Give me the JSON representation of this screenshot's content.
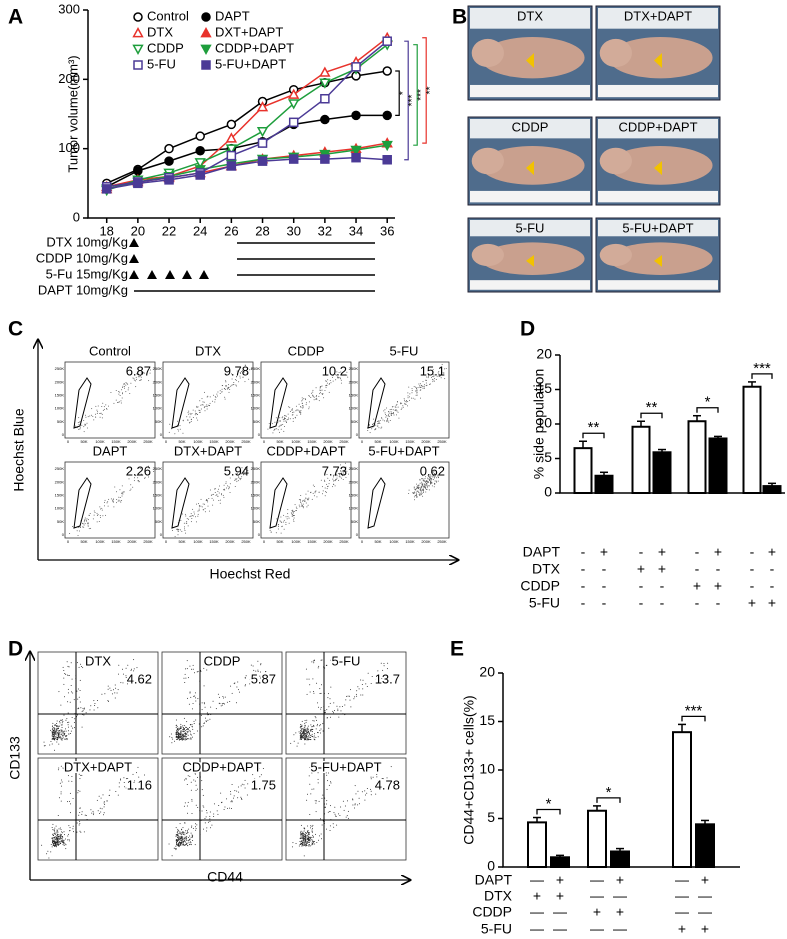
{
  "panel_labels": [
    "A",
    "B",
    "C",
    "D",
    "D",
    "E"
  ],
  "chart_data": [
    {
      "type": "line",
      "y_label": "Tumor volume(mm³)",
      "x": [
        18,
        20,
        22,
        24,
        26,
        28,
        30,
        32,
        34,
        36
      ],
      "xlim": [
        16.8,
        36.5
      ],
      "xticks": [
        18,
        20,
        22,
        24,
        26,
        28,
        30,
        32,
        34,
        36
      ],
      "ylim": [
        0,
        300
      ],
      "yticks": [
        0,
        100,
        200,
        300
      ],
      "legend": "top",
      "series": [
        {
          "name": "Control",
          "color": "#000000",
          "marker": "circle",
          "filled": false,
          "values": [
            50,
            70,
            100,
            118,
            135,
            168,
            185,
            195,
            205,
            212
          ]
        },
        {
          "name": "DAPT",
          "color": "#000000",
          "marker": "circle",
          "filled": true,
          "values": [
            45,
            68,
            82,
            97,
            100,
            110,
            135,
            142,
            148,
            148
          ]
        },
        {
          "name": "DTX",
          "color": "#e8322b",
          "marker": "triangle",
          "filled": false,
          "values": [
            45,
            55,
            60,
            75,
            115,
            160,
            178,
            210,
            225,
            260
          ]
        },
        {
          "name": "DXT+DAPT",
          "color": "#e8322b",
          "marker": "triangle",
          "filled": true,
          "values": [
            42,
            52,
            58,
            65,
            75,
            85,
            90,
            95,
            100,
            108
          ]
        },
        {
          "name": "CDDP",
          "color": "#1e9e3c",
          "marker": "triangle-down",
          "filled": false,
          "values": [
            40,
            55,
            65,
            80,
            100,
            125,
            165,
            195,
            215,
            250
          ]
        },
        {
          "name": "CDDP+DAPT",
          "color": "#1e9e3c",
          "marker": "triangle-down",
          "filled": true,
          "values": [
            42,
            52,
            60,
            70,
            78,
            85,
            88,
            92,
            98,
            105
          ]
        },
        {
          "name": "5-FU",
          "color": "#4b3a96",
          "marker": "square",
          "filled": false,
          "values": [
            45,
            52,
            58,
            65,
            90,
            108,
            138,
            172,
            218,
            255
          ]
        },
        {
          "name": "5-FU+DAPT",
          "color": "#4b3a96",
          "marker": "square",
          "filled": true,
          "values": [
            42,
            50,
            55,
            62,
            75,
            82,
            85,
            85,
            87,
            84
          ]
        }
      ],
      "annotations": [
        {
          "text": "*",
          "color": "#000000",
          "series": [
            0,
            1
          ]
        },
        {
          "text": "***",
          "color": "#4b3a96",
          "series": [
            6,
            7
          ]
        },
        {
          "text": "***",
          "color": "#1e9e3c",
          "series": [
            4,
            5
          ]
        },
        {
          "text": "**",
          "color": "#e8322b",
          "series": [
            2,
            3
          ]
        }
      ]
    },
    {
      "type": "bar",
      "y_label": "% side population",
      "ylim": [
        0,
        20
      ],
      "yticks": [
        0,
        5,
        10,
        15,
        20
      ],
      "values": [
        6.5,
        2.5,
        9.6,
        5.9,
        10.4,
        7.9,
        15.4,
        1.0
      ],
      "errors": [
        1.0,
        0.5,
        0.8,
        0.4,
        0.8,
        0.3,
        0.7,
        0.4
      ],
      "colors": [
        "#ffffff",
        "#000000",
        "#ffffff",
        "#000000",
        "#ffffff",
        "#000000",
        "#ffffff",
        "#000000"
      ],
      "significance": [
        {
          "text": "**",
          "bars": [
            0,
            1
          ]
        },
        {
          "text": "**",
          "bars": [
            2,
            3
          ]
        },
        {
          "text": "*",
          "bars": [
            4,
            5
          ]
        },
        {
          "text": "***",
          "bars": [
            6,
            7
          ]
        }
      ],
      "conditions": [
        {
          "name": "DAPT",
          "signs": [
            "-",
            "+",
            "-",
            "+",
            "-",
            "+",
            "-",
            "+"
          ]
        },
        {
          "name": "DTX",
          "signs": [
            "-",
            "-",
            "+",
            "+",
            "-",
            "-",
            "-",
            "-"
          ]
        },
        {
          "name": "CDDP",
          "signs": [
            "-",
            "-",
            "-",
            "-",
            "+",
            "+",
            "-",
            "-"
          ]
        },
        {
          "name": "5-FU",
          "signs": [
            "-",
            "-",
            "-",
            "-",
            "-",
            "-",
            "+",
            "+"
          ]
        }
      ]
    },
    {
      "type": "bar",
      "y_label": "CD44+CD133+ cells(%)",
      "ylim": [
        0,
        20
      ],
      "yticks": [
        0,
        5,
        10,
        15,
        20
      ],
      "values": [
        4.6,
        1.0,
        5.8,
        1.6,
        13.9,
        4.4
      ],
      "errors": [
        0.5,
        0.2,
        0.5,
        0.3,
        0.8,
        0.4
      ],
      "colors": [
        "#ffffff",
        "#000000",
        "#ffffff",
        "#000000",
        "#ffffff",
        "#000000"
      ],
      "significance": [
        {
          "text": "*",
          "bars": [
            0,
            1
          ]
        },
        {
          "text": "*",
          "bars": [
            2,
            3
          ]
        },
        {
          "text": "***",
          "bars": [
            4,
            5
          ]
        }
      ],
      "conditions": [
        {
          "name": "DAPT",
          "signs": [
            "—",
            "+",
            "—",
            "+",
            "—",
            "+"
          ]
        },
        {
          "name": "DTX",
          "signs": [
            "+",
            "+",
            "—",
            "—",
            "—",
            "—"
          ]
        },
        {
          "name": "CDDP",
          "signs": [
            "—",
            "—",
            "+",
            "+",
            "—",
            "—"
          ]
        },
        {
          "name": "5-FU",
          "signs": [
            "—",
            "—",
            "—",
            "—",
            "+",
            "+"
          ]
        }
      ]
    }
  ],
  "schedule": [
    "DTX 10mg/Kg",
    "CDDP 10mg/Kg",
    "5-Fu 15mg/Kg",
    "DAPT 10mg/Kg"
  ],
  "photos": [
    "DTX",
    "DTX+DAPT",
    "CDDP",
    "CDDP+DAPT",
    "5-FU",
    "5-FU+DAPT"
  ],
  "flow_c": {
    "y_label": "Hoechst Blue",
    "x_label": "Hoechst Red",
    "ticks": [
      "0",
      "50K",
      "100K",
      "150K",
      "200K",
      "250K"
    ],
    "plots": [
      {
        "label": "Control",
        "value": "6.87"
      },
      {
        "label": "DTX",
        "value": "9.78"
      },
      {
        "label": "CDDP",
        "value": "10.2"
      },
      {
        "label": "5-FU",
        "value": "15.1"
      },
      {
        "label": "DAPT",
        "value": "2.26"
      },
      {
        "label": "DTX+DAPT",
        "value": "5.94"
      },
      {
        "label": "CDDP+DAPT",
        "value": "7.73"
      },
      {
        "label": "5-FU+DAPT",
        "value": "0.62"
      }
    ]
  },
  "flow_d": {
    "y_label": "CD133",
    "x_label": "CD44",
    "plots": [
      {
        "label": "DTX",
        "value": "4.62"
      },
      {
        "label": "CDDP",
        "value": "5.87"
      },
      {
        "label": "5-FU",
        "value": "13.7"
      },
      {
        "label": "DTX+DAPT",
        "value": "1.16"
      },
      {
        "label": "CDDP+DAPT",
        "value": "1.75"
      },
      {
        "label": "5-FU+DAPT",
        "value": "4.78"
      }
    ]
  }
}
